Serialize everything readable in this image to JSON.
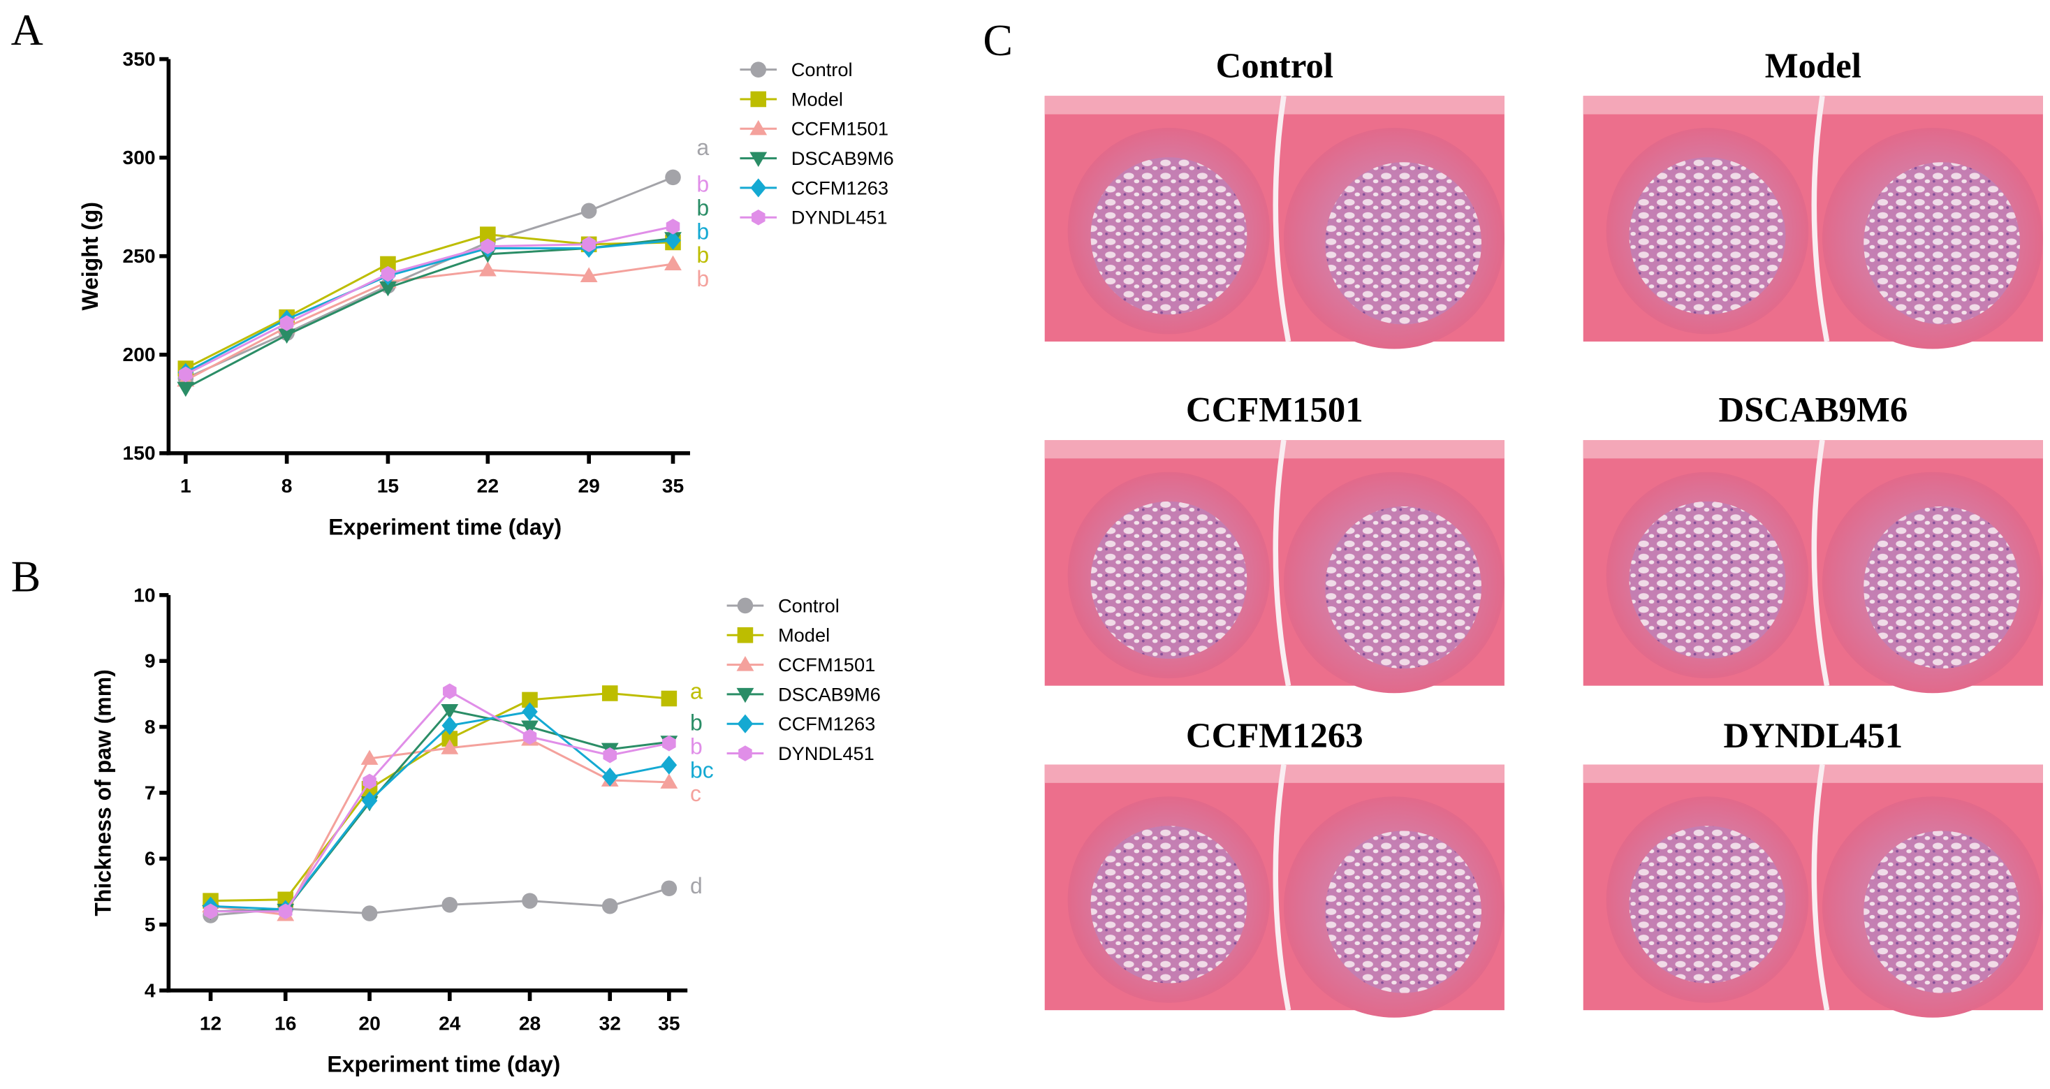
{
  "panel_labels": {
    "a": "A",
    "b": "B",
    "c": "C"
  },
  "colors": {
    "Control": "#a3a3a8",
    "Model": "#bdbd00",
    "CCFM1501": "#f4a19c",
    "DSCAB9M6": "#2a8d66",
    "CCFM1263": "#14a9d2",
    "DYNDL451": "#e08ee8"
  },
  "chart_data": [
    {
      "type": "line",
      "panel": "A",
      "xlabel": "Experiment time (day)",
      "ylabel": "Weight (g)",
      "x": [
        1,
        8,
        15,
        22,
        29,
        35
      ],
      "x_tick_labels": [
        "1",
        "8",
        "15",
        "22",
        "29",
        "35"
      ],
      "ylim": [
        150,
        350
      ],
      "y_ticks": [
        150,
        200,
        250,
        300,
        350
      ],
      "legend_position": "top-right",
      "series": [
        {
          "name": "Control",
          "marker": "circle",
          "values": [
            188,
            211,
            235,
            257,
            273,
            290
          ],
          "significance": "a"
        },
        {
          "name": "Model",
          "marker": "square",
          "values": [
            193,
            219,
            246,
            261,
            256,
            257
          ],
          "significance": "b"
        },
        {
          "name": "CCFM1501",
          "marker": "triangle-up",
          "values": [
            187,
            214,
            237,
            243,
            240,
            246
          ],
          "significance": "b"
        },
        {
          "name": "DSCAB9M6",
          "marker": "triangle-down",
          "values": [
            183,
            210,
            234,
            251,
            254,
            259
          ],
          "significance": "b"
        },
        {
          "name": "CCFM1263",
          "marker": "diamond",
          "values": [
            191,
            218,
            240,
            254,
            254,
            258
          ],
          "significance": "b"
        },
        {
          "name": "DYNDL451",
          "marker": "hexagon",
          "values": [
            190,
            216,
            241,
            255,
            256,
            265
          ],
          "significance": "b"
        }
      ],
      "significance_order": [
        "Control",
        "DYNDL451",
        "DSCAB9M6",
        "CCFM1263",
        "Model",
        "CCFM1501"
      ]
    },
    {
      "type": "line",
      "panel": "B",
      "xlabel": "Experiment time (day)",
      "ylabel": "Thickness of paw (mm)",
      "x": [
        12,
        16,
        20,
        24,
        28,
        32,
        35
      ],
      "x_tick_labels": [
        "12",
        "16",
        "20",
        "24",
        "28",
        "32",
        "35"
      ],
      "ylim": [
        4,
        10
      ],
      "y_ticks": [
        4,
        5,
        6,
        7,
        8,
        9,
        10
      ],
      "legend_position": "top-right",
      "series": [
        {
          "name": "Control",
          "marker": "circle",
          "values": [
            5.14,
            5.24,
            5.17,
            5.3,
            5.36,
            5.28,
            5.55
          ],
          "significance": "d"
        },
        {
          "name": "Model",
          "marker": "square",
          "values": [
            5.36,
            5.38,
            7.06,
            7.82,
            8.41,
            8.51,
            8.43
          ],
          "significance": "a"
        },
        {
          "name": "CCFM1501",
          "marker": "triangle-up",
          "values": [
            5.28,
            5.15,
            7.52,
            7.68,
            7.81,
            7.19,
            7.16
          ],
          "significance": "c"
        },
        {
          "name": "DSCAB9M6",
          "marker": "triangle-down",
          "values": [
            5.2,
            5.22,
            6.85,
            8.25,
            8.0,
            7.66,
            7.77
          ],
          "significance": "b"
        },
        {
          "name": "CCFM1263",
          "marker": "diamond",
          "values": [
            5.28,
            5.23,
            6.88,
            8.02,
            8.23,
            7.24,
            7.42
          ],
          "significance": "bc"
        },
        {
          "name": "DYNDL451",
          "marker": "hexagon",
          "values": [
            5.2,
            5.2,
            7.17,
            8.54,
            7.85,
            7.57,
            7.75
          ],
          "significance": "b"
        }
      ],
      "significance_order": [
        "Model",
        "DSCAB9M6",
        "DYNDL451",
        "CCFM1263",
        "CCFM1501",
        "Control"
      ]
    }
  ],
  "histology": {
    "titles": [
      "Control",
      "Model",
      "CCFM1501",
      "DSCAB9M6",
      "CCFM1263",
      "DYNDL451"
    ]
  }
}
